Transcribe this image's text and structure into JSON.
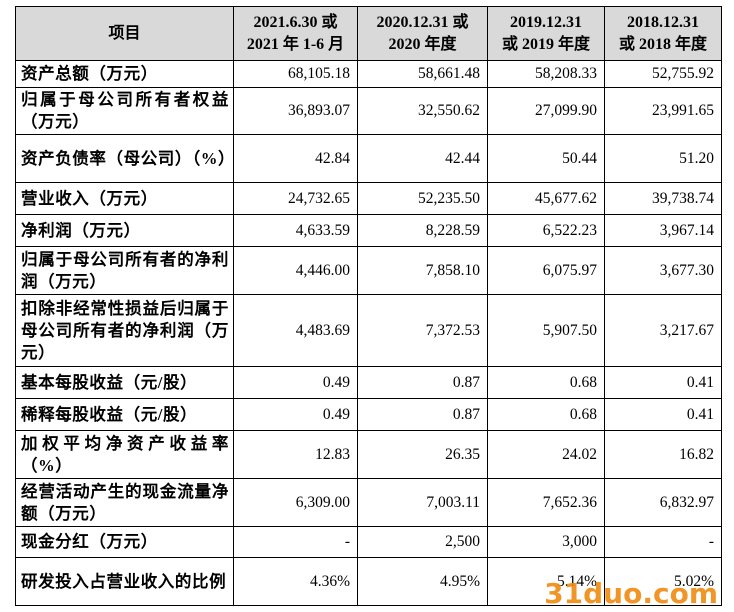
{
  "table": {
    "header": [
      "项目",
      [
        "2021.6.30 或",
        "2021 年 1-6 月"
      ],
      [
        "2020.12.31 或",
        "2020 年度"
      ],
      [
        "2019.12.31",
        "或 2019 年度"
      ],
      [
        "2018.12.31",
        "或 2018 年度"
      ]
    ],
    "rows": [
      [
        "资产总额（万元）",
        "68,105.18",
        "58,661.48",
        "58,208.33",
        "52,755.92"
      ],
      [
        "归属于母公司所有者权益（万元）",
        "36,893.07",
        "32,550.62",
        "27,099.90",
        "23,991.65"
      ],
      [
        "资产负债率（母公司）（%）",
        "42.84",
        "42.44",
        "50.44",
        "51.20"
      ],
      [
        "营业收入（万元）",
        "24,732.65",
        "52,235.50",
        "45,677.62",
        "39,738.74"
      ],
      [
        "净利润（万元）",
        "4,633.59",
        "8,228.59",
        "6,522.23",
        "3,967.14"
      ],
      [
        "归属于母公司所有者的净利润（万元）",
        "4,446.00",
        "7,858.10",
        "6,075.97",
        "3,677.30"
      ],
      [
        "扣除非经常性损益后归属于母公司所有者的净利润（万元）",
        "4,483.69",
        "7,372.53",
        "5,907.50",
        "3,217.67"
      ],
      [
        "基本每股收益（元/股）",
        "0.49",
        "0.87",
        "0.68",
        "0.41"
      ],
      [
        "稀释每股收益（元/股）",
        "0.49",
        "0.87",
        "0.68",
        "0.41"
      ],
      [
        "加权平均净资产收益率（%）",
        "12.83",
        "26.35",
        "24.02",
        "16.82"
      ],
      [
        "经营活动产生的现金流量净额（万元）",
        "6,309.00",
        "7,003.11",
        "7,652.36",
        "6,832.97"
      ],
      [
        "现金分红（万元）",
        "-",
        "2,500",
        "3,000",
        "-"
      ],
      [
        "研发投入占营业收入的比例",
        "4.36%",
        "4.95%",
        "5.14%",
        "5.02%"
      ]
    ]
  },
  "watermark": "31duo.com"
}
